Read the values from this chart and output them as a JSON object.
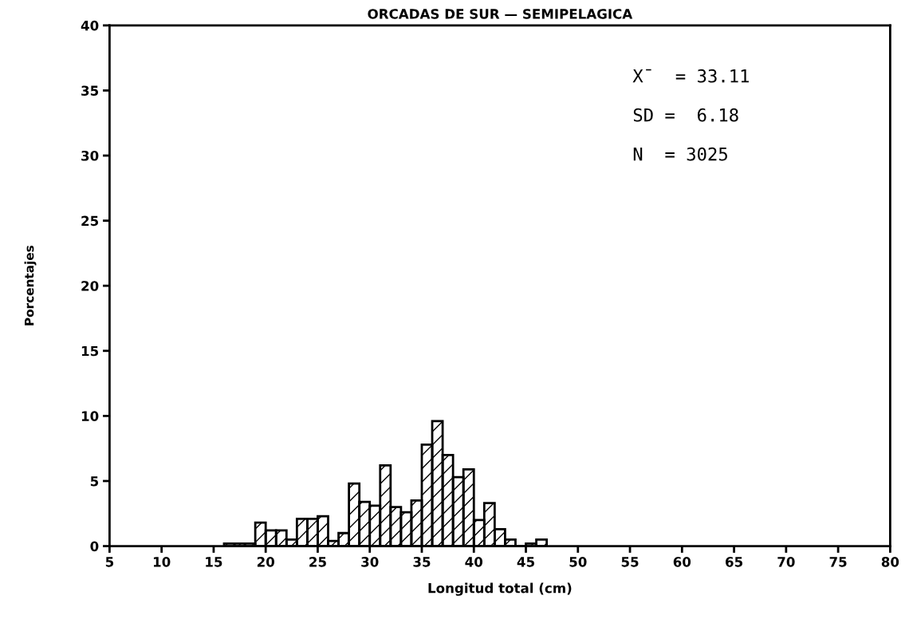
{
  "chart_data": {
    "type": "histogram",
    "title": "ORCADAS DE SUR — SEMIPELAGICA",
    "xlabel": "Longitud total (cm)",
    "ylabel": "Porcentajes",
    "bins": [
      16,
      17,
      18,
      19,
      20,
      21,
      22,
      23,
      24,
      25,
      26,
      27,
      28,
      29,
      30,
      31,
      32,
      33,
      34,
      35,
      36,
      37,
      38,
      39,
      40,
      41,
      42,
      43,
      44,
      45,
      46,
      47
    ],
    "values": [
      0.2,
      0.2,
      0.2,
      1.8,
      1.2,
      1.2,
      0.5,
      2.1,
      2.1,
      2.3,
      0.4,
      1.0,
      4.8,
      3.4,
      3.1,
      6.2,
      3.0,
      2.6,
      3.5,
      7.8,
      9.6,
      7.0,
      5.3,
      5.9,
      2.0,
      3.3,
      1.3,
      0.5,
      0,
      0.2,
      0.5
    ],
    "color": "#000000",
    "xlim": [
      5,
      80
    ],
    "xticks": [
      5,
      10,
      15,
      20,
      25,
      30,
      35,
      40,
      45,
      50,
      55,
      60,
      65,
      70,
      75,
      80
    ],
    "ylim": [
      0,
      40
    ],
    "yticks": [
      0,
      5,
      10,
      15,
      20,
      25,
      30,
      35,
      40
    ],
    "grid": false,
    "annotations": [
      "X̄  = 33.11",
      "SD =  6.18",
      "N  = 3025"
    ]
  }
}
